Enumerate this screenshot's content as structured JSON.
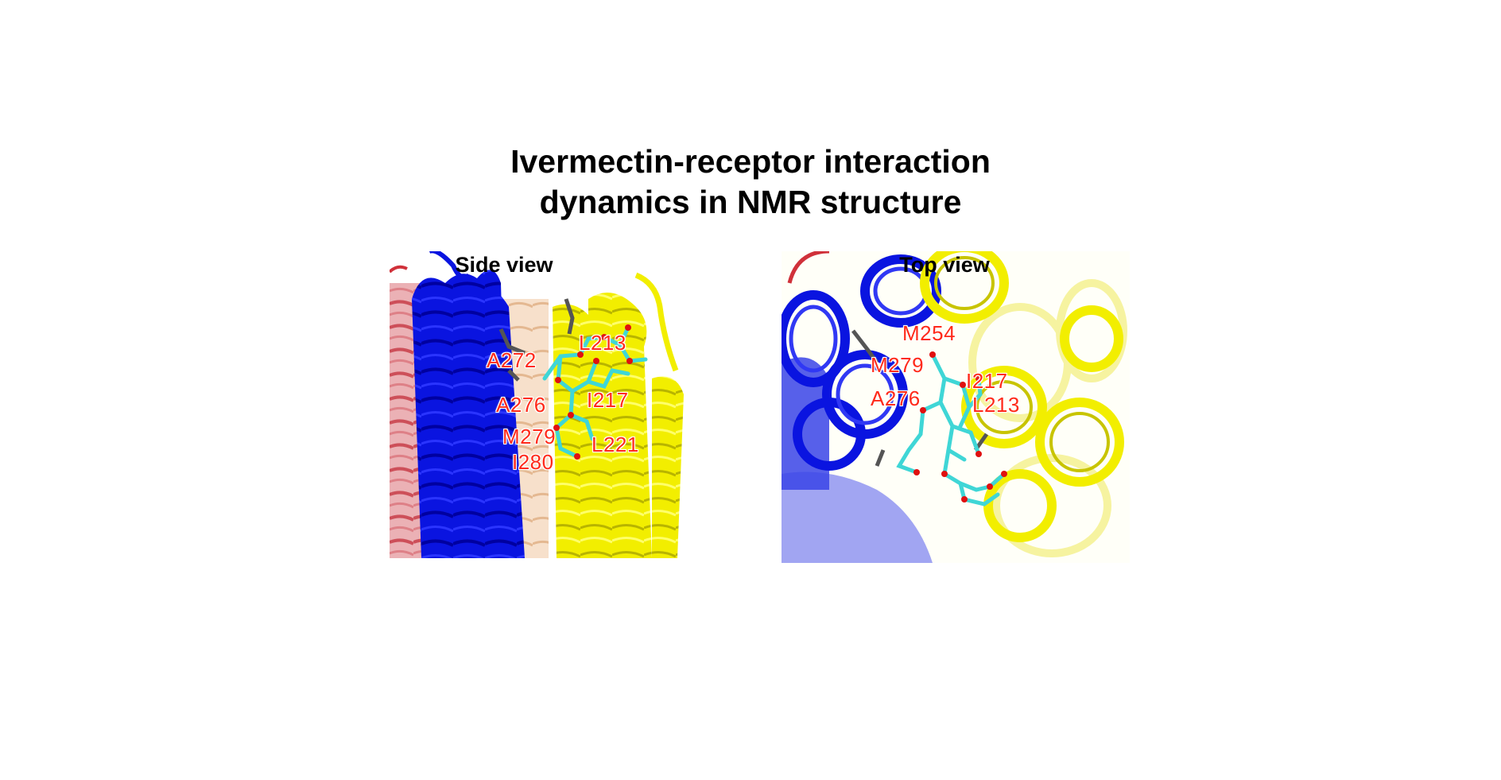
{
  "title": {
    "line1": "Ivermectin-receptor interaction",
    "line2": "dynamics in NMR structure"
  },
  "panels": {
    "side": {
      "label": "Side view",
      "residues": [
        "L213",
        "A272",
        "I217",
        "A276",
        "M279",
        "L221",
        "I280"
      ]
    },
    "top": {
      "label": "Top view",
      "residues": [
        "M254",
        "M279",
        "I217",
        "A276",
        "L213"
      ]
    }
  },
  "colors": {
    "helix_blue": "#0a14e0",
    "helix_yellow": "#f2ee00",
    "helix_red": "#d0313a",
    "helix_orange": "#e8a870",
    "ligand_cyan": "#3fd6d6",
    "ligand_oxygen": "#e01010",
    "residue_grey": "#555555",
    "label_red": "#ff2a1a"
  }
}
